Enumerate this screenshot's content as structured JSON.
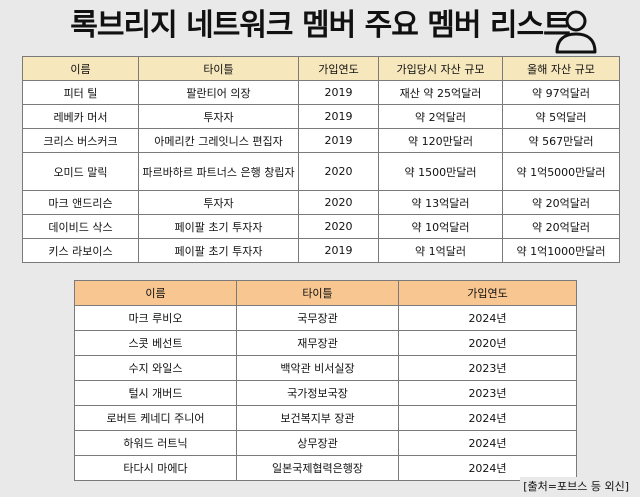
{
  "title": "록브리지 네트워크 멤버 주요 멤버 리스트",
  "table1": {
    "headers": [
      "이름",
      "타이틀",
      "가입연도",
      "가입당시 자산 규모",
      "올해 자산 규모"
    ],
    "rows": [
      [
        "피터 틸",
        "팔란티어 의장",
        "2019",
        "재산 약 25억달러",
        "약 97억달러"
      ],
      [
        "레베카 머서",
        "투자자",
        "2019",
        "약 2억달러",
        "약 5억달러"
      ],
      [
        "크리스 버스커크",
        "아메리칸 그레잇니스 편집자",
        "2019",
        "약 120만달러",
        "약 567만달러"
      ],
      [
        "오미드 말릭",
        "파르바하르 파트너스 은행 창립자",
        "2020",
        "약 1500만달러",
        "약 1억5000만달러"
      ],
      [
        "마크 앤드리슨",
        "투자자",
        "2020",
        "약 13억달러",
        "약 20억달러"
      ],
      [
        "데이비드 삭스",
        "페이팔 초기 투자자",
        "2020",
        "약 10억달러",
        "약 20억달러"
      ],
      [
        "키스 라보이스",
        "페이팔 초기 투자자",
        "2019",
        "약 1억달러",
        "약 1억1000만달러"
      ]
    ]
  },
  "table2": {
    "headers": [
      "이름",
      "타이틀",
      "가입연도"
    ],
    "rows": [
      [
        "마크 루비오",
        "국무장관",
        "2024년"
      ],
      [
        "스콧 베선트",
        "재무장관",
        "2020년"
      ],
      [
        "수지 와일스",
        "백악관 비서실장",
        "2023년"
      ],
      [
        "털시 개버드",
        "국가정보국장",
        "2023년"
      ],
      [
        "로버트 케네디 주니어",
        "보건복지부 장관",
        "2024년"
      ],
      [
        "하워드 러트닉",
        "상무장관",
        "2024년"
      ],
      [
        "타다시 마에다",
        "일본국제협력은행장",
        "2024년"
      ]
    ]
  },
  "source": "[출처=포브스 등 외신]",
  "colors": {
    "background": "#e9e9e9",
    "table1_header": "#f6e7bc",
    "table2_header": "#f7c691"
  },
  "icons": [
    "person-icon"
  ]
}
